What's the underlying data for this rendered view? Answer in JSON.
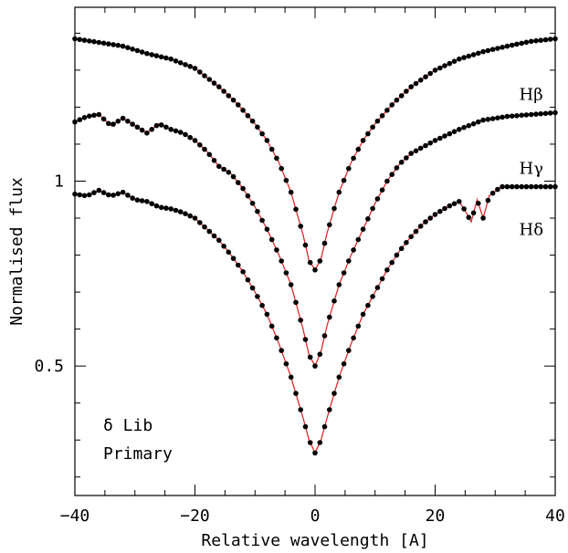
{
  "chart_data": {
    "type": "scatter",
    "title": "",
    "xlabel": "Relative wavelength [A]",
    "ylabel": "Normalised flux",
    "xlim": [
      -40,
      40
    ],
    "ylim": [
      0.15,
      1.47
    ],
    "xticks": [
      -40,
      -20,
      0,
      20,
      40
    ],
    "xtick_labels": [
      "−40",
      "−20",
      "0",
      "20",
      "40"
    ],
    "yticks": [
      0.5,
      1
    ],
    "ytick_labels": [
      "0.5",
      "1"
    ],
    "grid": false,
    "colors": {
      "observed": "#000000",
      "model": "#e41a1c"
    },
    "annotations": [
      "δ Lib",
      "Primary"
    ],
    "series": [
      {
        "name": "Hβ",
        "label_at": [
          34,
          1.22
        ],
        "points": [
          [
            -40,
            1.385
          ],
          [
            -36,
            1.375
          ],
          [
            -32,
            1.365
          ],
          [
            -28,
            1.345
          ],
          [
            -24,
            1.33
          ],
          [
            -20,
            1.305
          ],
          [
            -16,
            1.255
          ],
          [
            -13,
            1.21
          ],
          [
            -10,
            1.155
          ],
          [
            -8,
            1.11
          ],
          [
            -6,
            1.05
          ],
          [
            -4,
            0.97
          ],
          [
            -2,
            0.855
          ],
          [
            -1,
            0.785
          ],
          [
            0,
            0.76
          ],
          [
            1,
            0.79
          ],
          [
            2,
            0.86
          ],
          [
            4,
            0.97
          ],
          [
            6,
            1.05
          ],
          [
            8,
            1.11
          ],
          [
            10,
            1.155
          ],
          [
            13,
            1.21
          ],
          [
            16,
            1.255
          ],
          [
            20,
            1.3
          ],
          [
            24,
            1.33
          ],
          [
            28,
            1.35
          ],
          [
            32,
            1.365
          ],
          [
            36,
            1.378
          ],
          [
            40,
            1.385
          ]
        ]
      },
      {
        "name": "Hγ",
        "label_at": [
          34,
          1.02
        ],
        "points": [
          [
            -40,
            1.16
          ],
          [
            -38,
            1.175
          ],
          [
            -36,
            1.18
          ],
          [
            -34,
            1.15
          ],
          [
            -32,
            1.17
          ],
          [
            -30,
            1.15
          ],
          [
            -28,
            1.13
          ],
          [
            -26,
            1.155
          ],
          [
            -24,
            1.14
          ],
          [
            -22,
            1.13
          ],
          [
            -20,
            1.11
          ],
          [
            -18,
            1.08
          ],
          [
            -16,
            1.04
          ],
          [
            -14,
            1.02
          ],
          [
            -12,
            0.98
          ],
          [
            -10,
            0.93
          ],
          [
            -8,
            0.87
          ],
          [
            -6,
            0.8
          ],
          [
            -4,
            0.72
          ],
          [
            -2,
            0.6
          ],
          [
            -1,
            0.53
          ],
          [
            0,
            0.5
          ],
          [
            1,
            0.54
          ],
          [
            2,
            0.61
          ],
          [
            4,
            0.72
          ],
          [
            6,
            0.8
          ],
          [
            8,
            0.87
          ],
          [
            10,
            0.94
          ],
          [
            12,
            1.0
          ],
          [
            14,
            1.045
          ],
          [
            16,
            1.075
          ],
          [
            20,
            1.11
          ],
          [
            24,
            1.14
          ],
          [
            28,
            1.165
          ],
          [
            32,
            1.175
          ],
          [
            36,
            1.18
          ],
          [
            40,
            1.185
          ]
        ]
      },
      {
        "name": "Hδ",
        "label_at": [
          34,
          0.855
        ],
        "points": [
          [
            -40,
            0.965
          ],
          [
            -38,
            0.96
          ],
          [
            -36,
            0.975
          ],
          [
            -34,
            0.96
          ],
          [
            -32,
            0.97
          ],
          [
            -30,
            0.95
          ],
          [
            -28,
            0.945
          ],
          [
            -26,
            0.93
          ],
          [
            -24,
            0.925
          ],
          [
            -22,
            0.915
          ],
          [
            -20,
            0.9
          ],
          [
            -18,
            0.87
          ],
          [
            -16,
            0.84
          ],
          [
            -14,
            0.8
          ],
          [
            -12,
            0.755
          ],
          [
            -10,
            0.7
          ],
          [
            -8,
            0.64
          ],
          [
            -6,
            0.56
          ],
          [
            -4,
            0.47
          ],
          [
            -2,
            0.36
          ],
          [
            -1,
            0.3
          ],
          [
            0,
            0.265
          ],
          [
            1,
            0.3
          ],
          [
            2,
            0.36
          ],
          [
            4,
            0.47
          ],
          [
            6,
            0.56
          ],
          [
            8,
            0.64
          ],
          [
            10,
            0.7
          ],
          [
            12,
            0.76
          ],
          [
            14,
            0.81
          ],
          [
            16,
            0.85
          ],
          [
            18,
            0.885
          ],
          [
            20,
            0.91
          ],
          [
            22,
            0.93
          ],
          [
            24,
            0.945
          ],
          [
            25,
            0.92
          ],
          [
            26,
            0.89
          ],
          [
            27,
            0.95
          ],
          [
            28,
            0.9
          ],
          [
            29,
            0.96
          ],
          [
            31,
            0.985
          ],
          [
            35,
            0.985
          ],
          [
            40,
            0.985
          ]
        ]
      }
    ]
  }
}
